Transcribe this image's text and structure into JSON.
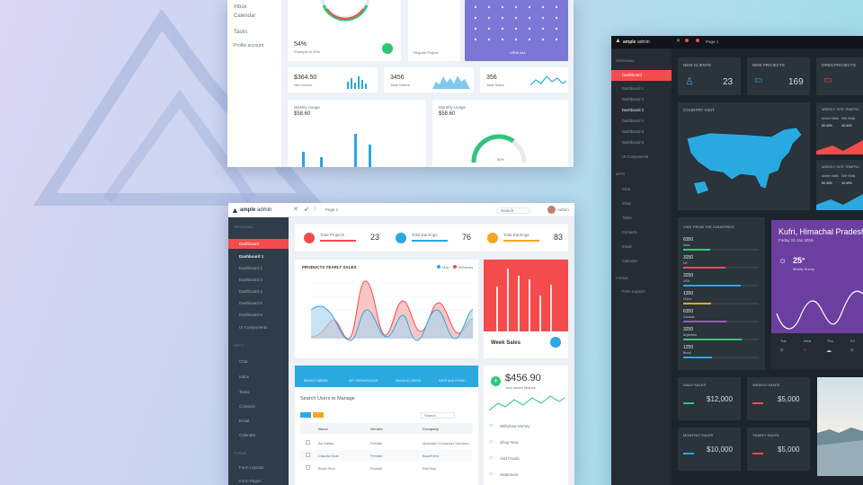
{
  "top_window": {
    "sidebar": [
      "Inbox",
      "Calendar",
      "Tasks",
      "Profile account"
    ],
    "stat_pct": "54%",
    "stat_pct_sub": "Example of 20%",
    "proj_sub": "Regular Project",
    "calendar_btn": "VIEW ALL",
    "mini_stats": [
      {
        "v": "$364.50",
        "s": "Net Income"
      },
      {
        "v": "3456",
        "s": "Total Orders"
      },
      {
        "v": "356",
        "s": "Total Sales"
      }
    ],
    "usage": [
      {
        "t": "Weekly Usage",
        "v": "$58.60"
      },
      {
        "t": "Monthly Usage",
        "v": "$58.60"
      }
    ],
    "gauge_label": "60%"
  },
  "main_window": {
    "brand_bold": "ample",
    "brand_light": "admin",
    "page": "Page 1",
    "search": "Search",
    "user": "Admin",
    "sidebar": {
      "personal": "PERSONAL",
      "dashboard": "Dashboard",
      "sub": [
        "Dashboard 1",
        "Dashboard 2",
        "Dashboard 3",
        "Dashboard 4",
        "Dashboard 5",
        "Dashboard 6"
      ],
      "ui": "UI Components",
      "apps": "APPS",
      "apps_items": [
        "Chat",
        "Inbox",
        "Tasks",
        "Contacts",
        "Email",
        "Calendar"
      ],
      "forms": "FORMS",
      "forms_items": [
        "Form Layouts",
        "Form Pages"
      ]
    },
    "stats": [
      {
        "label": "Total Projects",
        "value": "23",
        "color": "#f44c4c"
      },
      {
        "label": "Total Earnings",
        "value": "76",
        "color": "#2aa8e0"
      },
      {
        "label": "Total Earnings",
        "value": "83",
        "color": "#f5a623"
      }
    ],
    "chart_title": "PRODUCTS YEARLY SALES",
    "legend": [
      "Mac",
      "Windows"
    ],
    "week_sales": "Week Sales",
    "wallet_value": "$456.90",
    "wallet_sub": "Your saved finance",
    "wallet_items": [
      "Withdraw Money",
      "Shop Now",
      "Add Funds",
      "Statement"
    ],
    "tabs": [
      "SELECT USERS",
      "SET PERMISSIONS",
      "MANAGE USERS",
      "SAVE AND FINISH"
    ],
    "manage_title": "Search Users to Manage",
    "table_search": "Search",
    "table_headers": [
      "Name",
      "Gender",
      "Company"
    ],
    "rows": [
      [
        "Ad Dallas",
        "Female",
        "Quantum Computer Services"
      ],
      [
        "Claudia Noel",
        "Female",
        "BuzzFeed"
      ],
      [
        "Bond Rios",
        "Female",
        "Riot Bus"
      ]
    ]
  },
  "dark_window": {
    "brand_bold": "ample",
    "brand_light": "admin",
    "page": "Page 1",
    "sidebar": {
      "personal": "PERSONAL",
      "dashboard": "Dashboard",
      "sub": [
        "Dashboard 1",
        "Dashboard 2",
        "Dashboard 3",
        "Dashboard 4",
        "Dashboard 5",
        "Dashboard 6"
      ],
      "ui": "UI Components",
      "apps": "APPS",
      "apps_items": [
        "Chat",
        "Inbox",
        "Tasks",
        "Contacts",
        "Email",
        "Calendar"
      ],
      "forms": "FORMS",
      "forms_items": [
        "Form Layouts"
      ]
    },
    "cards": [
      {
        "t": "NEW CLIENTS",
        "v": "23"
      },
      {
        "t": "NEW PROJECTS",
        "v": "169"
      },
      {
        "t": "OPEN PROJECTS",
        "v": ""
      }
    ],
    "map_title": "COUNTRY VISIT",
    "side_stats": [
      {
        "t": "WEEKLY SITE TRAFFIC",
        "a": "Active Visits",
        "b": "Site Visits",
        "av": "80.40%",
        "bv": "40.40%"
      },
      {
        "t": "WEEKLY SITE TRAFFIC",
        "a": "Active Visits",
        "b": "Site Visits",
        "av": "80.40%",
        "bv": "40.40%"
      }
    ],
    "visit_title": "VISIT FROM THE COUNTRIES",
    "visits": [
      {
        "v": "6350",
        "c": "#2ecc71"
      },
      {
        "v": "3250",
        "c": "#e8505b"
      },
      {
        "v": "3250",
        "c": "#2aa8e0"
      },
      {
        "v": "1350",
        "c": "#f5a623"
      },
      {
        "v": "6350",
        "c": "#9b59b6"
      },
      {
        "v": "3250",
        "c": "#2ecc71"
      },
      {
        "v": "1250",
        "c": "#2aa8e0"
      }
    ],
    "visit_countries": [
      "India",
      "UK",
      "USA",
      "China",
      "Canada",
      "Argentina",
      "Brazil"
    ],
    "weather_city": "Kufri, Himachal Pradesh",
    "weather_date": "Friday 15 Jan 2016",
    "weather_temp": "25°",
    "weather_desc": "Mostly Sunny",
    "days": [
      "Tue",
      "Wed",
      "Thu",
      "Fri"
    ],
    "sales": [
      {
        "t": "DAILY SALES",
        "v": "$12,000"
      },
      {
        "t": "WEEKLY SALES",
        "v": "$5,000"
      },
      {
        "t": "MONTHLY SALES",
        "v": "$10,000"
      },
      {
        "t": "YEARLY SALES",
        "v": "$5,000"
      }
    ]
  }
}
